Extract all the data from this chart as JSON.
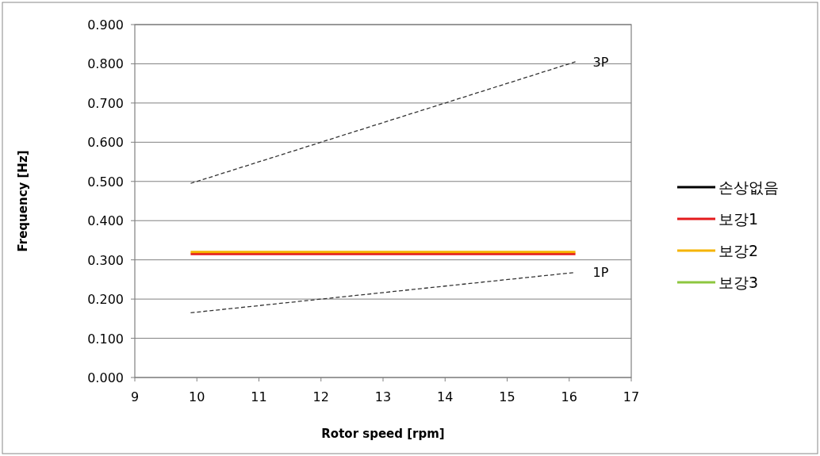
{
  "chart_data": {
    "type": "line",
    "xlabel": "Rotor speed [rpm]",
    "ylabel": "Frequency [Hz]",
    "xlim": [
      9,
      17
    ],
    "xticks": [
      9,
      10,
      11,
      12,
      13,
      14,
      15,
      16,
      17
    ],
    "ylim": [
      0,
      0.9
    ],
    "yticks": [
      {
        "value": 0,
        "label": "0.000"
      },
      {
        "value": 0.1,
        "label": "0.100"
      },
      {
        "value": 0.2,
        "label": "0.200"
      },
      {
        "value": 0.3,
        "label": "0.300"
      },
      {
        "value": 0.4,
        "label": "0.400"
      },
      {
        "value": 0.5,
        "label": "0.500"
      },
      {
        "value": 0.6,
        "label": "0.600"
      },
      {
        "value": 0.7,
        "label": "0.700"
      },
      {
        "value": 0.8,
        "label": "0.800"
      },
      {
        "value": 0.9,
        "label": "0.900"
      }
    ],
    "grid": "y",
    "legend": "right",
    "marker": "none",
    "x": [
      9.9,
      16.1
    ],
    "series": [
      {
        "name": "손상없음",
        "color": "#000000",
        "values": [
          null,
          null
        ],
        "line_style": "solid"
      },
      {
        "name": "보강1",
        "color": "#e41a1c",
        "values": [
          0.315,
          0.315
        ],
        "line_style": "solid"
      },
      {
        "name": "보강2",
        "color": "#f5b400",
        "values": [
          0.32,
          0.32
        ],
        "line_style": "solid"
      },
      {
        "name": "보강3",
        "color": "#8dc63f",
        "values": [
          null,
          null
        ],
        "line_style": "solid"
      },
      {
        "name": "3P",
        "color": "#333333",
        "values": [
          0.495,
          0.805
        ],
        "line_style": "dashed"
      },
      {
        "name": "1P",
        "color": "#333333",
        "values": [
          0.165,
          0.268
        ],
        "line_style": "dashed"
      }
    ]
  }
}
